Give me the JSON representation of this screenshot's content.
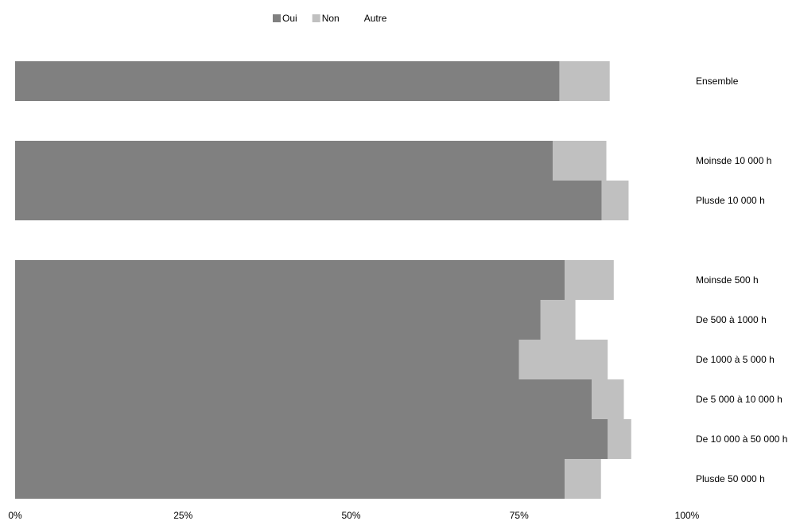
{
  "chart_data": {
    "type": "bar",
    "orientation": "horizontal",
    "stacked": true,
    "legend_position": "top",
    "grid": false,
    "xlim": [
      0,
      100
    ],
    "x_ticks": [
      "0%",
      "25%",
      "50%",
      "75%",
      "100%"
    ],
    "categories": [
      "Ensemble",
      "Moinsde 10 000 h",
      "Plusde 10 000 h",
      "Moinsde 500 h",
      "De 500 à 1000 h",
      "De 1000 à 5 000 h",
      "De 5 000 à 10 000 h",
      "De 10 000 à 50 000 h",
      "Plusde 50 000 h"
    ],
    "groups": [
      [
        0
      ],
      [
        1,
        2
      ],
      [
        3,
        4,
        5,
        6,
        7,
        8
      ]
    ],
    "series": [
      {
        "name": "Oui",
        "color": "#808080",
        "values": [
          81,
          80,
          87.3,
          81.8,
          78.2,
          75,
          85.8,
          88.2,
          81.8
        ]
      },
      {
        "name": "Non",
        "color": "#c0c0c0",
        "values": [
          7.5,
          8,
          4,
          7.3,
          5.2,
          13.2,
          4.8,
          3.5,
          5.4
        ]
      },
      {
        "name": "Autre",
        "color": "#ffffff",
        "values": [
          11.5,
          12,
          8.7,
          10.9,
          16.6,
          11.8,
          9.4,
          8.3,
          12.8
        ]
      }
    ]
  }
}
